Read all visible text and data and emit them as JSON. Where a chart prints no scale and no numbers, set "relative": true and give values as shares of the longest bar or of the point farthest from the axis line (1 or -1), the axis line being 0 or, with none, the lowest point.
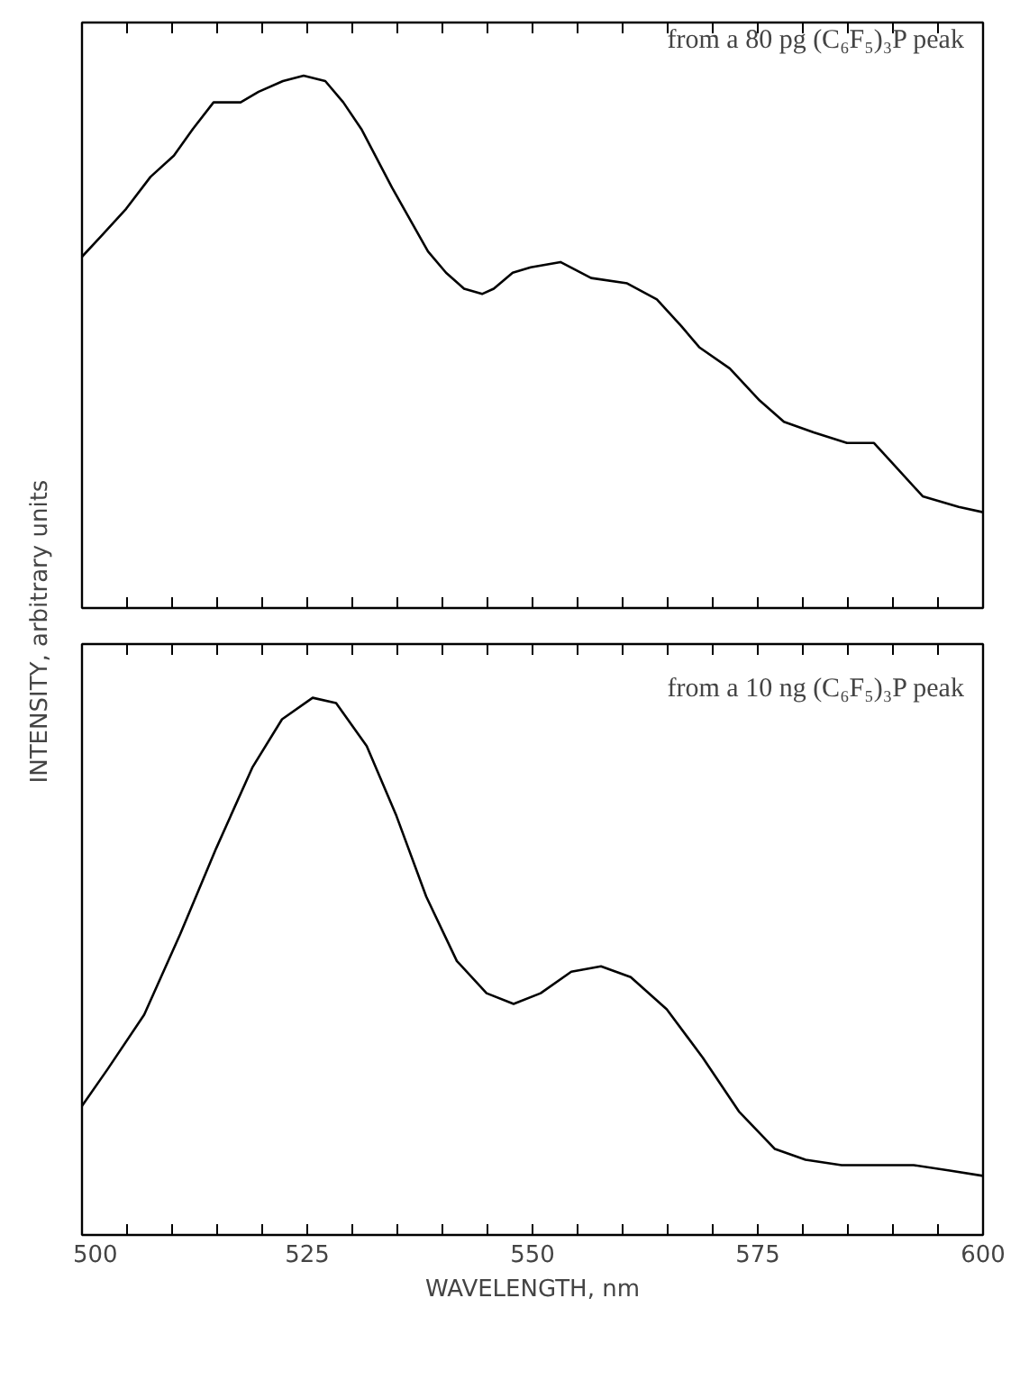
{
  "chart_data": [
    {
      "type": "line",
      "relative": true,
      "ylabel": "INTENSITY, arbitrary units",
      "annotations": [
        "from a 80 pg (C₆F₅)₃P peak"
      ],
      "xlim": [
        500,
        600
      ],
      "xticks": [
        500,
        {
          "value": 505,
          "label": null
        },
        {
          "value": 510,
          "label": null
        },
        {
          "value": 515,
          "label": null
        },
        {
          "value": 520,
          "label": null
        },
        525,
        {
          "value": 530,
          "label": null
        },
        {
          "value": 535,
          "label": null
        },
        {
          "value": 540,
          "label": null
        },
        {
          "value": 545,
          "label": null
        },
        550,
        {
          "value": 555,
          "label": null
        },
        {
          "value": 560,
          "label": null
        },
        {
          "value": 565,
          "label": null
        },
        {
          "value": 570,
          "label": null
        },
        575,
        {
          "value": 580,
          "label": null
        },
        {
          "value": 585,
          "label": null
        },
        {
          "value": 590,
          "label": null
        },
        {
          "value": 595,
          "label": null
        },
        600
      ],
      "tick_labels": false,
      "grid": false,
      "marker": "none",
      "line_style": "solid",
      "x": [
        500,
        502.2,
        504.9,
        507.6,
        510.2,
        512.3,
        514.6,
        516.3,
        517.6,
        519.6,
        522.3,
        524.6,
        527.0,
        529.0,
        531.0,
        534.4,
        536.4,
        538.4,
        540.4,
        542.4,
        544.4,
        545.7,
        547.8,
        549.8,
        553.1,
        556.5,
        560.5,
        563.8,
        566.5,
        568.5,
        571.9,
        575.2,
        577.9,
        581.2,
        584.9,
        587.9,
        590.6,
        593.3,
        597.3,
        600
      ],
      "series": [
        {
          "color": "#000000",
          "values": [
            0.66,
            0.7,
            0.75,
            0.81,
            0.85,
            0.9,
            0.95,
            0.95,
            0.95,
            0.97,
            0.99,
            1.0,
            0.99,
            0.95,
            0.9,
            0.79,
            0.73,
            0.67,
            0.63,
            0.6,
            0.59,
            0.6,
            0.63,
            0.64,
            0.65,
            0.62,
            0.61,
            0.58,
            0.53,
            0.49,
            0.45,
            0.39,
            0.35,
            0.33,
            0.31,
            0.31,
            0.26,
            0.21,
            0.19,
            0.18
          ]
        }
      ]
    },
    {
      "type": "line",
      "relative": true,
      "xlabel": "WAVELENGTH, nm",
      "annotations": [
        "from a 10 ng (C₆F₅)₃P peak"
      ],
      "xlim": [
        500,
        600
      ],
      "xticks": [
        500,
        {
          "value": 505,
          "label": null
        },
        {
          "value": 510,
          "label": null
        },
        {
          "value": 515,
          "label": null
        },
        {
          "value": 520,
          "label": null
        },
        525,
        {
          "value": 530,
          "label": null
        },
        {
          "value": 535,
          "label": null
        },
        {
          "value": 540,
          "label": null
        },
        {
          "value": 545,
          "label": null
        },
        550,
        {
          "value": 555,
          "label": null
        },
        {
          "value": 560,
          "label": null
        },
        {
          "value": 565,
          "label": null
        },
        {
          "value": 570,
          "label": null
        },
        575,
        {
          "value": 580,
          "label": null
        },
        {
          "value": 585,
          "label": null
        },
        {
          "value": 590,
          "label": null
        },
        {
          "value": 595,
          "label": null
        },
        600
      ],
      "tick_labels": "x",
      "grid": false,
      "marker": "none",
      "line_style": "solid",
      "x": [
        500,
        502.9,
        506.9,
        510.9,
        514.9,
        518.9,
        522.2,
        525.6,
        528.2,
        531.6,
        534.9,
        538.2,
        541.6,
        544.9,
        547.9,
        550.9,
        554.3,
        557.6,
        560.9,
        564.9,
        568.9,
        572.9,
        576.9,
        580.3,
        584.3,
        587.6,
        592.3,
        596.3,
        600
      ],
      "series": [
        {
          "color": "#000000",
          "values": [
            0.24,
            0.31,
            0.41,
            0.56,
            0.72,
            0.87,
            0.96,
            1.0,
            0.99,
            0.91,
            0.78,
            0.63,
            0.51,
            0.45,
            0.43,
            0.45,
            0.49,
            0.5,
            0.48,
            0.42,
            0.33,
            0.23,
            0.16,
            0.14,
            0.13,
            0.13,
            0.13,
            0.12,
            0.11
          ]
        }
      ]
    }
  ]
}
